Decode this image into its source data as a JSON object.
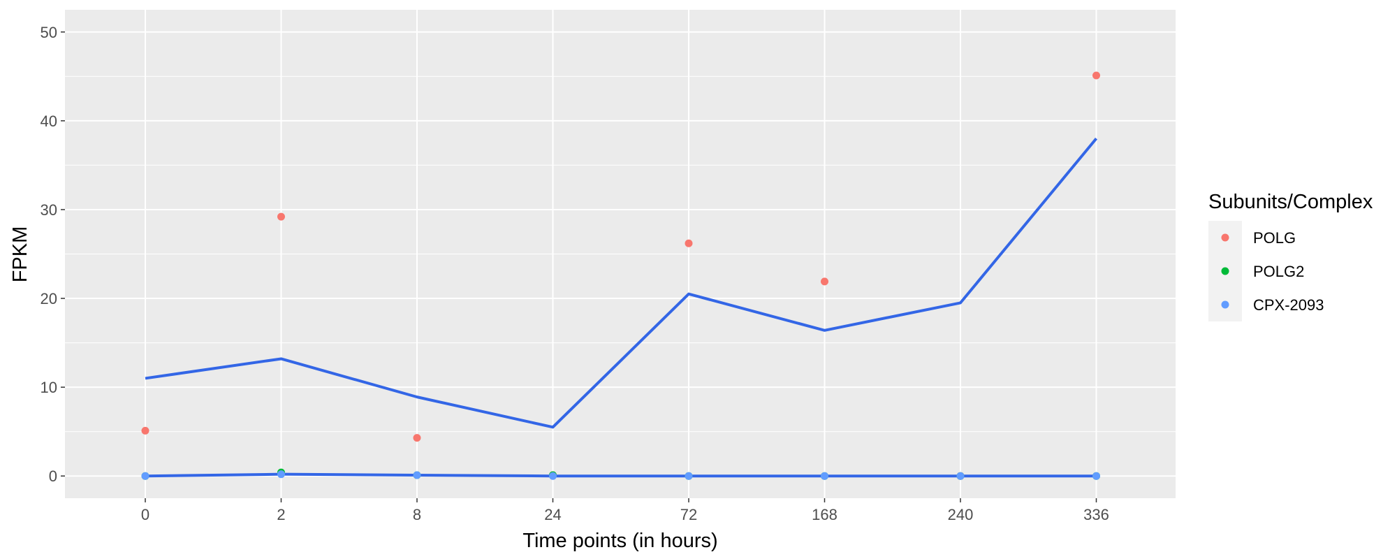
{
  "chart_data": {
    "type": "scatter",
    "title": "",
    "xlabel": "Time points (in hours)",
    "ylabel": "FPKM",
    "categories": [
      "0",
      "2",
      "8",
      "24",
      "72",
      "168",
      "240",
      "336"
    ],
    "ylim": [
      -2.5,
      52.5
    ],
    "yticks": [
      0,
      10,
      20,
      30,
      40,
      50
    ],
    "grid": true,
    "legend": {
      "title": "Subunits/Complex",
      "placement": "right",
      "entries": [
        "POLG",
        "POLG2",
        "CPX-2093"
      ]
    },
    "series": [
      {
        "name": "POLG",
        "color": "#F8766D",
        "mode": "points",
        "values": [
          5.1,
          29.2,
          4.3,
          0.1,
          26.2,
          21.9,
          0.0,
          45.1
        ]
      },
      {
        "name": "POLG2",
        "color": "#00BA38",
        "mode": "points",
        "values": [
          0.0,
          0.4,
          0.1,
          0.1,
          0.0,
          0.0,
          0.0,
          0.0
        ]
      },
      {
        "name": "CPX-2093",
        "color": "#619CFF",
        "mode": "points",
        "values": [
          0.0,
          0.2,
          0.1,
          0.0,
          0.0,
          0.0,
          0.0,
          0.0
        ]
      }
    ],
    "lines": [
      {
        "color": "#3366E6",
        "values": [
          11.0,
          13.2,
          8.9,
          5.5,
          20.5,
          16.4,
          19.5,
          38.0
        ]
      },
      {
        "color": "#3366E6",
        "values": [
          0.0,
          0.2,
          0.1,
          0.0,
          0.0,
          0.0,
          0.0,
          0.0
        ]
      }
    ],
    "colors": {
      "panel": "#EBEBEB",
      "grid": "#FFFFFF",
      "tick_text": "#4D4D4D",
      "legend_key_bg": "#F2F2F2"
    }
  }
}
